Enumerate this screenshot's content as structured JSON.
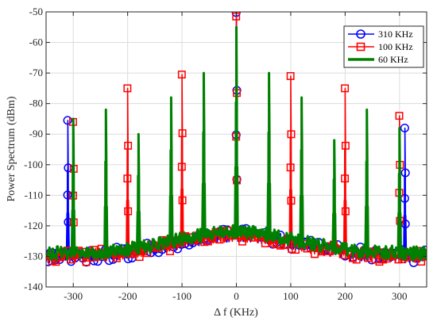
{
  "chart_data": {
    "type": "line",
    "title": "",
    "xlabel": "Δ f (KHz)",
    "ylabel": "Power Spectrum (dBm)",
    "xlim": [
      -350,
      350
    ],
    "ylim": [
      -140,
      -50
    ],
    "xticks": [
      -300,
      -200,
      -100,
      0,
      100,
      200,
      300
    ],
    "yticks": [
      -140,
      -130,
      -120,
      -110,
      -100,
      -90,
      -80,
      -70,
      -60,
      -50
    ],
    "xtick_labels": [
      "-300",
      "-200",
      "-100",
      "0",
      "100",
      "200",
      "300"
    ],
    "ytick_labels": [
      "-140",
      "-130",
      "-120",
      "-110",
      "-100",
      "-90",
      "-80",
      "-70",
      "-60",
      "-50"
    ],
    "grid": true,
    "legend_position": "top-right",
    "series": [
      {
        "name": "310 KHz",
        "color": "#0000ff",
        "marker": "circle",
        "peaks": [
          [
            -310,
            -85.5
          ],
          [
            0,
            -50.2
          ],
          [
            310,
            -88
          ]
        ],
        "noise_floor": -130
      },
      {
        "name": "100 KHz",
        "color": "#ff0000",
        "marker": "square",
        "peaks": [
          [
            -300,
            -86
          ],
          [
            -200,
            -75
          ],
          [
            -100,
            -70.5
          ],
          [
            0,
            -51.5
          ],
          [
            100,
            -71
          ],
          [
            200,
            -75
          ],
          [
            300,
            -84
          ]
        ],
        "noise_floor": -130
      },
      {
        "name": "60 KHz",
        "color": "#008000",
        "marker": "none",
        "peaks": [
          [
            -300,
            -85
          ],
          [
            -240,
            -82
          ],
          [
            -180,
            -90
          ],
          [
            -120,
            -78
          ],
          [
            -60,
            -70
          ],
          [
            0,
            -55
          ],
          [
            60,
            -70
          ],
          [
            120,
            -78
          ],
          [
            180,
            -92
          ],
          [
            240,
            -82
          ],
          [
            300,
            -88
          ]
        ],
        "noise_floor": -129
      }
    ]
  }
}
